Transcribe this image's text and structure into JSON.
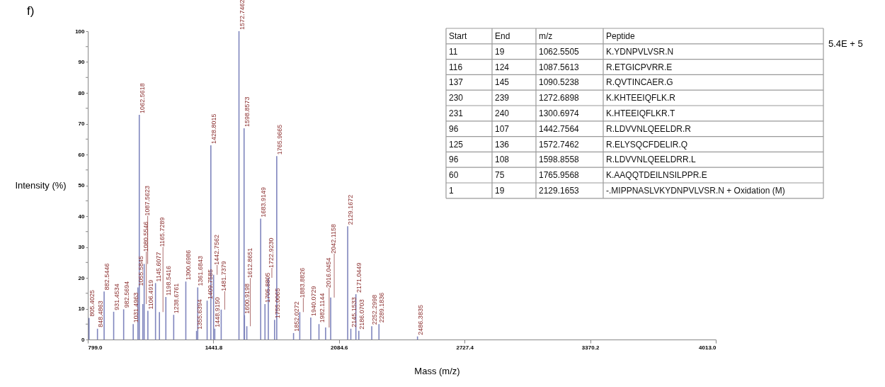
{
  "chart_data": [
    {
      "type": "bar",
      "xlabel": "Mass (m/z)",
      "ylabel": "Intensity (%)",
      "color": "#7f85bd",
      "grid": false,
      "x": [
        805.4025,
        848.4863,
        882.5446,
        931.4534,
        982.5694,
        1031.4963,
        1055.5845,
        1062.5618,
        1080.5546,
        1087.5623,
        1106.4919,
        1145.6077,
        1165.7289,
        1198.5416,
        1238.6761,
        1300.6986,
        1355.6394,
        1361.6843,
        1409.7585,
        1428.8015,
        1442.7562,
        1448.915,
        1481.7379,
        1572.7462,
        1598.8573,
        1600.9198,
        1612.8651,
        1683.9149,
        1705.8805,
        1722.923,
        1755.0065,
        1765.9665,
        1852.0272,
        1883.8826,
        1940.0729,
        1982.1144,
        2016.0454,
        2042.1158,
        2129.1672,
        2145.1533,
        2171.0449,
        2186.0703,
        2252.2998,
        2289.1836,
        2486.3835
      ],
      "values": [
        7,
        3.5,
        15.6,
        9,
        9.8,
        5,
        16.9,
        72.9,
        11.5,
        24.5,
        9.3,
        18.3,
        8.9,
        13.8,
        8,
        18.8,
        2.8,
        16.9,
        12.6,
        63,
        21,
        3.5,
        9.7,
        100,
        68.5,
        7.9,
        4.3,
        39.2,
        11.5,
        20,
        6.4,
        59.5,
        2.1,
        8.9,
        7.1,
        5,
        3.9,
        13.6,
        36.7,
        3.5,
        14.7,
        2.8,
        4.3,
        5,
        1
      ],
      "annotations": [
        "f)",
        "5.4E + 5",
        {
          "text": "805.4025",
          "x": 805.4025,
          "y": 7
        },
        {
          "text": "848.4863",
          "x": 848.4863,
          "y": 3.5
        },
        {
          "text": "882.5446",
          "x": 882.5446,
          "y": 15.6
        },
        {
          "text": "931.4534",
          "x": 931.4534,
          "y": 9
        },
        {
          "text": "982.5694",
          "x": 982.5694,
          "y": 9.8
        },
        {
          "text": "1031.4963",
          "x": 1031.4963,
          "y": 5
        },
        {
          "text": "1055.5845",
          "x": 1055.5845,
          "y": 16.9
        },
        {
          "text": "1062.5618",
          "x": 1062.5618,
          "y": 72.9
        },
        {
          "text": "1080.5546",
          "x": 1080.5546,
          "y": 11.5
        },
        {
          "text": "1087.5623",
          "x": 1087.5623,
          "y": 24.5
        },
        {
          "text": "1106.4919",
          "x": 1106.4919,
          "y": 9.3
        },
        {
          "text": "1145.6077",
          "x": 1145.6077,
          "y": 18.3
        },
        {
          "text": "1165.7289",
          "x": 1165.7289,
          "y": 8.9
        },
        {
          "text": "1198.5416",
          "x": 1198.5416,
          "y": 13.8
        },
        {
          "text": "1238.6761",
          "x": 1238.6761,
          "y": 8
        },
        {
          "text": "1300.6986",
          "x": 1300.6986,
          "y": 18.8
        },
        {
          "text": "1355.6394",
          "x": 1355.6394,
          "y": 2.8
        },
        {
          "text": "1361.6843",
          "x": 1361.6843,
          "y": 16.9
        },
        {
          "text": "1409.7585",
          "x": 1409.7585,
          "y": 12.6
        },
        {
          "text": "1428.8015",
          "x": 1428.8015,
          "y": 63
        },
        {
          "text": "1442.7562",
          "x": 1442.7562,
          "y": 21
        },
        {
          "text": "1448.9150",
          "x": 1448.915,
          "y": 3.5
        },
        {
          "text": "1481.7379",
          "x": 1481.7379,
          "y": 9.7
        },
        {
          "text": "1572.7462",
          "x": 1572.7462,
          "y": 100
        },
        {
          "text": "1598.8573",
          "x": 1598.8573,
          "y": 68.5
        },
        {
          "text": "1600.9198",
          "x": 1600.9198,
          "y": 7.9
        },
        {
          "text": "1612.8651",
          "x": 1612.8651,
          "y": 4.3
        },
        {
          "text": "1683.9149",
          "x": 1683.9149,
          "y": 39.2
        },
        {
          "text": "1705.8805",
          "x": 1705.8805,
          "y": 11.5
        },
        {
          "text": "1722.9230",
          "x": 1722.923,
          "y": 20
        },
        {
          "text": "1755.0065",
          "x": 1755.0065,
          "y": 6.4
        },
        {
          "text": "1765.9665",
          "x": 1765.9665,
          "y": 59.5
        },
        {
          "text": "1852.0272",
          "x": 1852.0272,
          "y": 2.1
        },
        {
          "text": "1883.8826",
          "x": 1883.8826,
          "y": 8.9
        },
        {
          "text": "1940.0729",
          "x": 1940.0729,
          "y": 7.1
        },
        {
          "text": "1982.1144",
          "x": 1982.1144,
          "y": 5
        },
        {
          "text": "2016.0454",
          "x": 2016.0454,
          "y": 3.9
        },
        {
          "text": "2042.1158",
          "x": 2042.1158,
          "y": 13.6
        },
        {
          "text": "2129.1672",
          "x": 2129.1672,
          "y": 36.7
        },
        {
          "text": "2145.1533",
          "x": 2145.1533,
          "y": 3.5
        },
        {
          "text": "2171.0449",
          "x": 2171.0449,
          "y": 14.7
        },
        {
          "text": "2186.0703",
          "x": 2186.0703,
          "y": 2.8
        },
        {
          "text": "2252.2998",
          "x": 2252.2998,
          "y": 4.3
        },
        {
          "text": "2289.1836",
          "x": 2289.1836,
          "y": 5
        },
        {
          "text": "2486.3835",
          "x": 2486.3835,
          "y": 1
        }
      ],
      "xlim": [
        799,
        4013
      ],
      "xticks": [
        {
          "value": 799,
          "label": "799.0"
        },
        1441.8,
        2084.6,
        2727.4,
        3370.2,
        {
          "value": 4013,
          "label": "4013.0"
        }
      ],
      "ylim": [
        0,
        100
      ],
      "yticks": [
        0,
        {
          "value": 5,
          "label": null
        },
        10,
        {
          "value": 15,
          "label": null
        },
        20,
        {
          "value": 25,
          "label": null
        },
        30,
        {
          "value": 35,
          "label": null
        },
        40,
        {
          "value": 45,
          "label": null
        },
        50,
        {
          "value": 55,
          "label": null
        },
        60,
        {
          "value": 65,
          "label": null
        },
        70,
        {
          "value": 75,
          "label": null
        },
        80,
        {
          "value": 85,
          "label": null
        },
        90,
        {
          "value": 95,
          "label": null
        },
        100
      ]
    },
    {
      "type": "other",
      "categories": [
        "Start",
        "End",
        "m/z",
        "Peptide"
      ],
      "cell_labels": [
        [
          "11",
          "19",
          "1062.5505",
          "K.YDNPVLVSR.N"
        ],
        [
          "116",
          "124",
          "1087.5613",
          "R.ETGICPVRR.E"
        ],
        [
          "137",
          "145",
          "1090.5238",
          "R.QVTINCAER.G"
        ],
        [
          "230",
          "239",
          "1272.6898",
          "K.KHTEEIQFLK.R"
        ],
        [
          "231",
          "240",
          "1300.6974",
          "K.HTEEIQFLKR.T"
        ],
        [
          "96",
          "107",
          "1442.7564",
          "R.LDVVNLQEELDR.R"
        ],
        [
          "125",
          "136",
          "1572.7462",
          "R.ELYSQCFDELIR.Q"
        ],
        [
          "96",
          "108",
          "1598.8558",
          "R.LDVVNLQEELDRR.L"
        ],
        [
          "60",
          "75",
          "1765.9568",
          "K.AAQQTDEILNSILPPR.E"
        ],
        [
          "1",
          "19",
          "2129.1653",
          "-.MIPPNASLVKYDNPVLVSR.N + Oxidation (M)"
        ]
      ]
    }
  ]
}
